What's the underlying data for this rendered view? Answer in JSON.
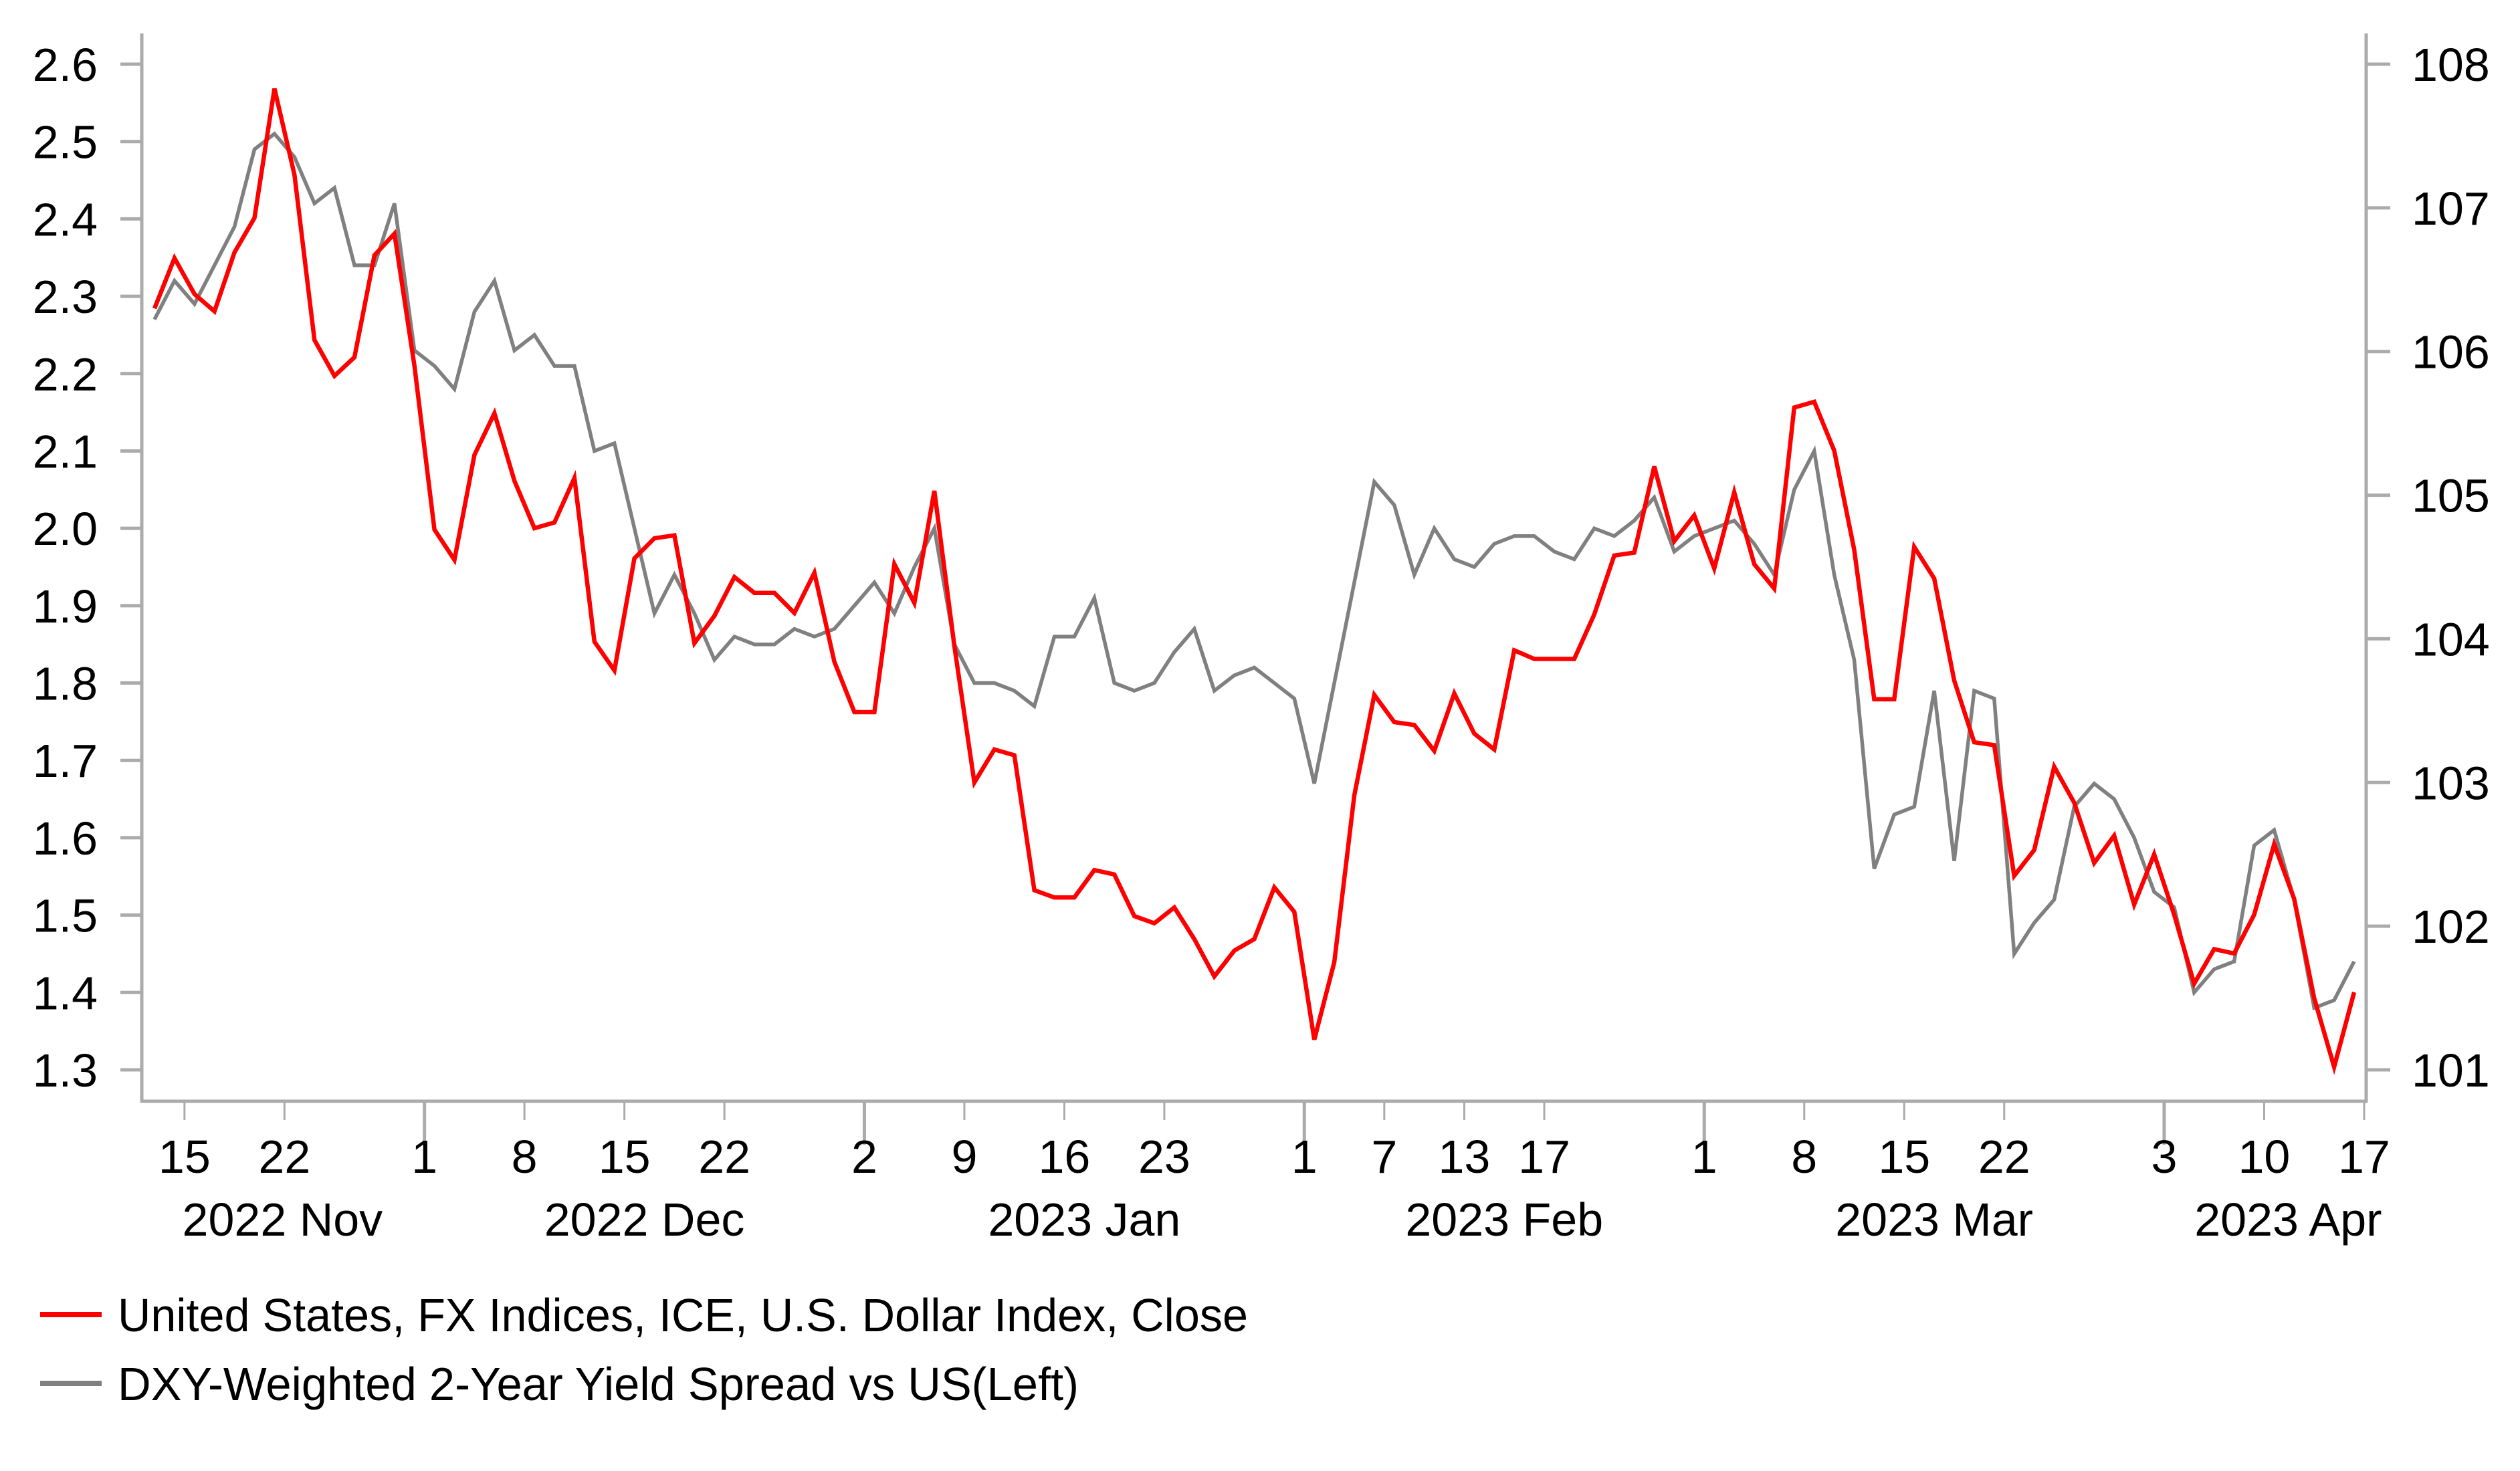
{
  "chart_data": {
    "type": "line",
    "x_axis": {
      "unit": "trading-day index",
      "ticks": [
        {
          "label": "15",
          "x_index": 1.5,
          "major": false
        },
        {
          "label": "22",
          "x_index": 6.5,
          "major": false
        },
        {
          "label": "1",
          "x_index": 13.5,
          "major": true
        },
        {
          "label": "8",
          "x_index": 18.5,
          "major": false
        },
        {
          "label": "15",
          "x_index": 23.5,
          "major": false
        },
        {
          "label": "22",
          "x_index": 28.5,
          "major": false
        },
        {
          "label": "2",
          "x_index": 35.5,
          "major": true
        },
        {
          "label": "9",
          "x_index": 40.5,
          "major": false
        },
        {
          "label": "16",
          "x_index": 45.5,
          "major": false
        },
        {
          "label": "23",
          "x_index": 50.5,
          "major": false
        },
        {
          "label": "1",
          "x_index": 57.5,
          "major": true
        },
        {
          "label": "7",
          "x_index": 61.5,
          "major": false
        },
        {
          "label": "13",
          "x_index": 65.5,
          "major": false
        },
        {
          "label": "17",
          "x_index": 69.5,
          "major": false
        },
        {
          "label": "1",
          "x_index": 77.5,
          "major": true
        },
        {
          "label": "8",
          "x_index": 82.5,
          "major": false
        },
        {
          "label": "15",
          "x_index": 87.5,
          "major": false
        },
        {
          "label": "22",
          "x_index": 92.5,
          "major": false
        },
        {
          "label": "3",
          "x_index": 100.5,
          "major": true
        },
        {
          "label": "10",
          "x_index": 105.5,
          "major": false
        },
        {
          "label": "17",
          "x_index": 110.5,
          "major": false
        }
      ],
      "month_labels": [
        {
          "label": "2022 Nov",
          "x_index": 6.4
        },
        {
          "label": "2022 Dec",
          "x_index": 24.5
        },
        {
          "label": "2023 Jan",
          "x_index": 46.5
        },
        {
          "label": "2023 Feb",
          "x_index": 67.5
        },
        {
          "label": "2023 Mar",
          "x_index": 89.0
        },
        {
          "label": "2023 Apr",
          "x_index": 106.7
        }
      ]
    },
    "left_axis": {
      "min": 1.3,
      "max": 2.6,
      "ticks": [
        2.6,
        2.5,
        2.4,
        2.3,
        2.2,
        2.1,
        2.0,
        1.9,
        1.8,
        1.7,
        1.6,
        1.5,
        1.4,
        1.3
      ],
      "labels": [
        "2.6",
        "2.5",
        "2.4",
        "2.3",
        "2.2",
        "2.1",
        "2.0",
        "1.9",
        "1.8",
        "1.7",
        "1.6",
        "1.5",
        "1.4",
        "1.3"
      ]
    },
    "right_axis": {
      "min": 101,
      "max": 108,
      "ticks": [
        108,
        107,
        106,
        105,
        104,
        103,
        102,
        101
      ],
      "labels": [
        "108",
        "107",
        "106",
        "105",
        "104",
        "103",
        "102",
        "101"
      ]
    },
    "grid": false,
    "legend_position": "bottom-left",
    "series": [
      {
        "name": "United States, FX Indices, ICE, U.S. Dollar Index, Close",
        "axis": "right",
        "color": "#ff0000",
        "values": [
          106.3,
          106.65,
          106.4,
          106.28,
          106.69,
          106.93,
          107.83,
          107.23,
          106.08,
          105.83,
          105.96,
          106.67,
          106.82,
          105.9,
          104.76,
          104.55,
          105.28,
          105.57,
          105.1,
          104.77,
          104.81,
          105.12,
          103.98,
          103.78,
          104.56,
          104.7,
          104.72,
          103.97,
          104.16,
          104.43,
          104.32,
          104.32,
          104.18,
          104.46,
          103.84,
          103.49,
          103.49,
          104.52,
          104.25,
          105.03,
          103.95,
          103.0,
          103.23,
          103.19,
          102.25,
          102.2,
          102.2,
          102.39,
          102.36,
          102.07,
          102.02,
          102.13,
          101.91,
          101.65,
          101.83,
          101.91,
          102.27,
          102.1,
          101.21,
          101.75,
          102.91,
          103.61,
          103.42,
          103.4,
          103.22,
          103.62,
          103.34,
          103.23,
          103.92,
          103.86,
          103.86,
          103.86,
          104.17,
          104.58,
          104.6,
          105.2,
          104.68,
          104.86,
          104.49,
          105.02,
          104.52,
          104.35,
          105.61,
          105.65,
          105.31,
          104.62,
          103.58,
          103.58,
          104.64,
          104.42,
          103.71,
          103.28,
          103.26,
          102.35,
          102.53,
          103.11,
          102.86,
          102.44,
          102.63,
          102.15,
          102.5,
          102.08,
          101.6,
          101.84,
          101.81,
          102.08,
          102.57,
          102.19,
          101.5,
          101.02,
          101.54
        ]
      },
      {
        "name": "DXY-Weighted 2-Year Yield Spread vs US(Left)",
        "axis": "left",
        "color": "#808080",
        "values": [
          2.27,
          2.32,
          2.29,
          2.34,
          2.39,
          2.49,
          2.51,
          2.48,
          2.42,
          2.44,
          2.34,
          2.34,
          2.42,
          2.23,
          2.21,
          2.18,
          2.28,
          2.32,
          2.23,
          2.25,
          2.21,
          2.21,
          2.1,
          2.11,
          2.0,
          1.89,
          1.94,
          1.89,
          1.83,
          1.86,
          1.85,
          1.85,
          1.87,
          1.86,
          1.87,
          1.9,
          1.93,
          1.89,
          1.95,
          2.0,
          1.85,
          1.8,
          1.8,
          1.79,
          1.77,
          1.86,
          1.86,
          1.91,
          1.8,
          1.79,
          1.8,
          1.84,
          1.87,
          1.79,
          1.81,
          1.82,
          1.8,
          1.78,
          1.67,
          1.8,
          1.93,
          2.06,
          2.03,
          1.94,
          2.0,
          1.96,
          1.95,
          1.98,
          1.99,
          1.99,
          1.97,
          1.96,
          2.0,
          1.99,
          2.01,
          2.04,
          1.97,
          1.99,
          2.0,
          2.01,
          1.98,
          1.94,
          2.05,
          2.1,
          1.94,
          1.83,
          1.56,
          1.63,
          1.64,
          1.79,
          1.57,
          1.79,
          1.78,
          1.45,
          1.49,
          1.52,
          1.64,
          1.67,
          1.65,
          1.6,
          1.53,
          1.51,
          1.4,
          1.43,
          1.44,
          1.59,
          1.61,
          1.52,
          1.38,
          1.39,
          1.44
        ]
      }
    ],
    "colors": {
      "axis": "#ababab",
      "text": "#000000"
    }
  }
}
